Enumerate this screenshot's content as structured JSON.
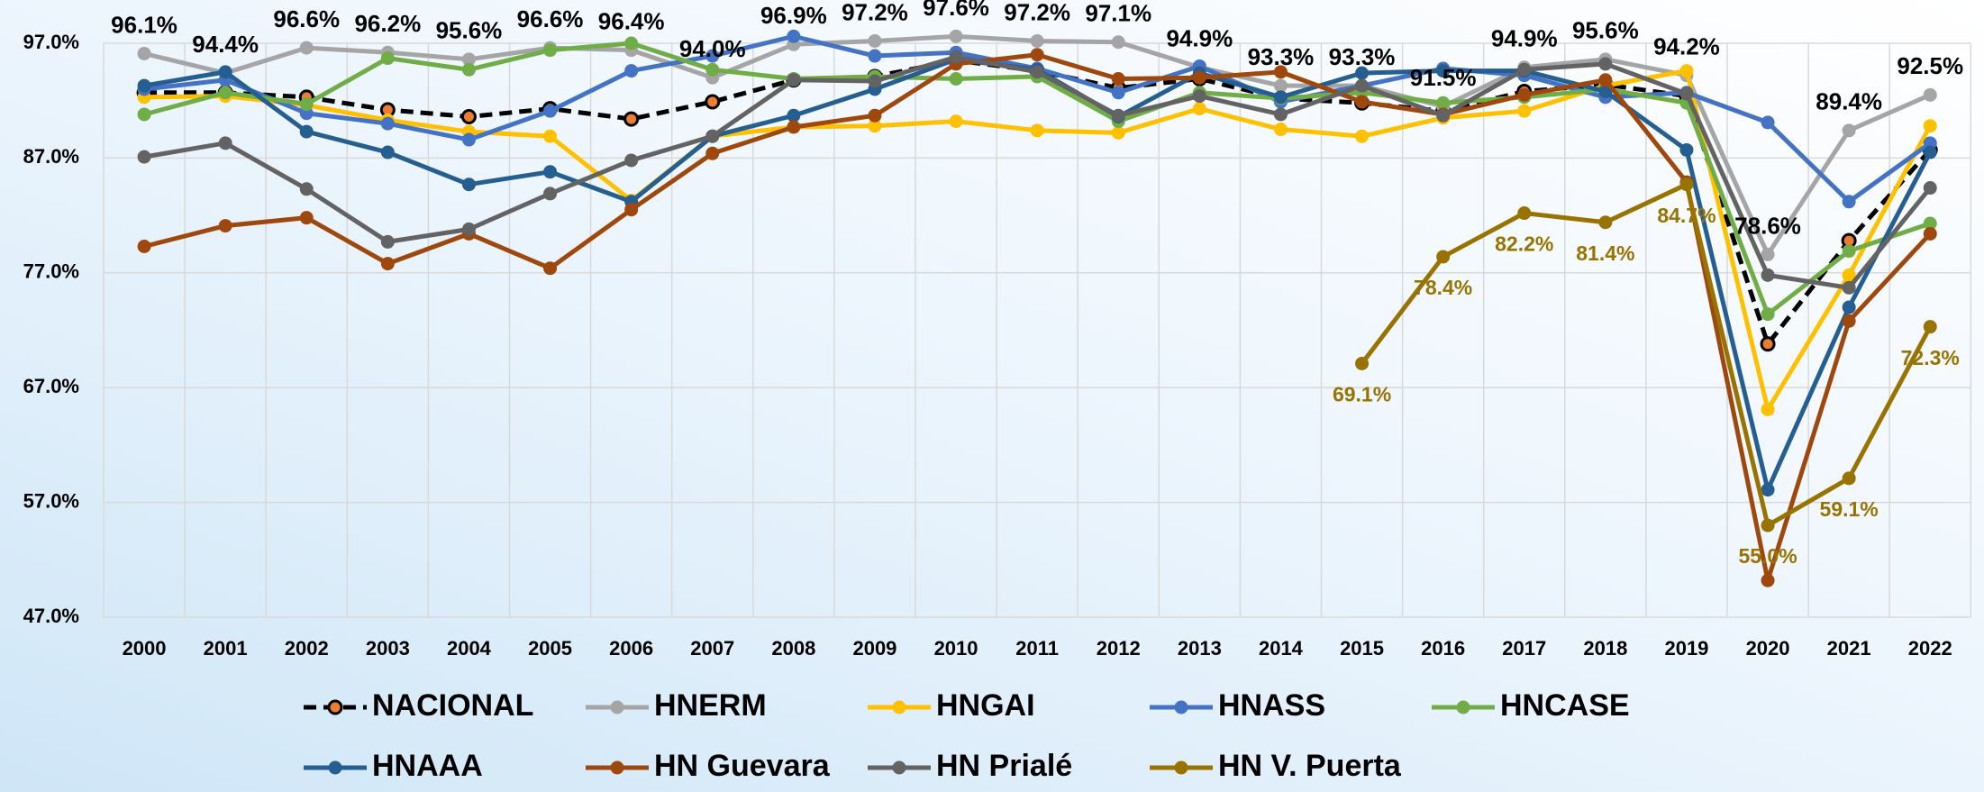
{
  "chart_data": {
    "type": "line",
    "categories": [
      "2000",
      "2001",
      "2002",
      "2003",
      "2004",
      "2005",
      "2006",
      "2007",
      "2008",
      "2009",
      "2010",
      "2011",
      "2012",
      "2013",
      "2014",
      "2015",
      "2016",
      "2017",
      "2018",
      "2019",
      "2020",
      "2021",
      "2022"
    ],
    "ylim": [
      47,
      97
    ],
    "yticks": [
      {
        "value": 47,
        "label": "47.0%"
      },
      {
        "value": 57,
        "label": "57.0%"
      },
      {
        "value": 67,
        "label": "67.0%"
      },
      {
        "value": 77,
        "label": "77.0%"
      },
      {
        "value": 87,
        "label": "87.0%"
      },
      {
        "value": 97,
        "label": "97.0%"
      }
    ],
    "grid": true,
    "legend": "bottom",
    "series": [
      {
        "name": "NACIONAL",
        "color": "#000000",
        "dashed": true,
        "values": [
          92.7,
          92.7,
          92.3,
          91.2,
          90.6,
          91.3,
          90.4,
          91.9,
          93.8,
          94.1,
          95.5,
          94.6,
          93.1,
          93.9,
          92.2,
          91.8,
          91.1,
          92.8,
          93.4,
          92.4,
          70.8,
          79.8,
          87.7
        ]
      },
      {
        "name": "HNERM",
        "color": "#a5a5a5",
        "values": [
          96.1,
          94.4,
          96.6,
          96.2,
          95.6,
          96.6,
          96.4,
          94.0,
          96.9,
          97.2,
          97.6,
          97.2,
          97.1,
          94.9,
          93.3,
          93.3,
          91.5,
          94.9,
          95.6,
          94.2,
          78.6,
          89.4,
          92.5
        ],
        "value_labels": [
          "96.1%",
          "94.4%",
          "96.6%",
          "96.2%",
          "95.6%",
          "96.6%",
          "96.4%",
          "94.0%",
          "96.9%",
          "97.2%",
          "97.6%",
          "97.2%",
          "97.1%",
          "94.9%",
          "93.3%",
          "93.3%",
          "91.5%",
          "94.9%",
          "95.6%",
          "94.2%",
          "78.6%",
          "89.4%",
          "92.5%"
        ]
      },
      {
        "name": "HNGAI",
        "color": "#ffc000",
        "values": [
          92.3,
          92.4,
          91.6,
          90.3,
          89.3,
          88.9,
          83.3,
          88.9,
          89.7,
          89.8,
          90.2,
          89.4,
          89.2,
          91.3,
          89.5,
          88.9,
          90.5,
          91.1,
          93.3,
          94.6,
          65.1,
          76.8,
          89.8
        ]
      },
      {
        "name": "HNASS",
        "color": "#4472c4",
        "values": [
          93.0,
          93.8,
          90.9,
          90.0,
          88.6,
          91.1,
          94.6,
          95.9,
          97.6,
          95.9,
          96.2,
          94.8,
          92.7,
          95.0,
          91.9,
          93.3,
          94.8,
          94.2,
          92.3,
          92.7,
          90.1,
          83.2,
          88.3
        ]
      },
      {
        "name": "HNCASE",
        "color": "#70ad47",
        "values": [
          90.8,
          92.7,
          91.7,
          95.7,
          94.7,
          96.4,
          97.0,
          94.7,
          93.9,
          94.1,
          93.9,
          94.1,
          90.2,
          92.7,
          92.2,
          92.7,
          91.8,
          92.3,
          93.0,
          91.8,
          73.4,
          78.9,
          81.3
        ]
      },
      {
        "name": "HNAAA",
        "color": "#255e91",
        "values": [
          93.3,
          94.5,
          89.3,
          87.5,
          84.7,
          85.8,
          83.2,
          88.9,
          90.7,
          93.0,
          95.6,
          94.7,
          90.6,
          94.4,
          92.3,
          94.4,
          94.6,
          94.6,
          92.8,
          87.7,
          58.1,
          74.0,
          87.5
        ]
      },
      {
        "name": "HN Guevara",
        "color": "#9e480e",
        "values": [
          79.3,
          81.1,
          81.8,
          77.8,
          80.4,
          77.4,
          82.5,
          87.4,
          89.7,
          90.7,
          95.2,
          96.0,
          93.9,
          94.0,
          94.5,
          91.9,
          90.8,
          92.5,
          93.8,
          84.9,
          50.2,
          72.8,
          80.4
        ]
      },
      {
        "name": "HN Prialé",
        "color": "#636363",
        "values": [
          87.1,
          88.3,
          84.3,
          79.7,
          80.8,
          83.9,
          86.8,
          88.9,
          93.8,
          93.7,
          95.8,
          94.5,
          90.7,
          92.4,
          90.8,
          93.3,
          90.7,
          94.7,
          95.2,
          92.6,
          76.8,
          75.7,
          84.4
        ]
      },
      {
        "name": "HN V. Puerta",
        "color": "#997300",
        "values": [
          null,
          null,
          null,
          null,
          null,
          null,
          null,
          null,
          null,
          null,
          null,
          null,
          null,
          null,
          null,
          69.1,
          78.4,
          82.2,
          81.4,
          84.7,
          55.0,
          59.1,
          72.3
        ],
        "value_labels": [
          null,
          null,
          null,
          null,
          null,
          null,
          null,
          null,
          null,
          null,
          null,
          null,
          null,
          null,
          null,
          "69.1%",
          "78.4%",
          "82.2%",
          "81.4%",
          "84.7%",
          "55.0%",
          "59.1%",
          "72.3%"
        ]
      }
    ]
  }
}
